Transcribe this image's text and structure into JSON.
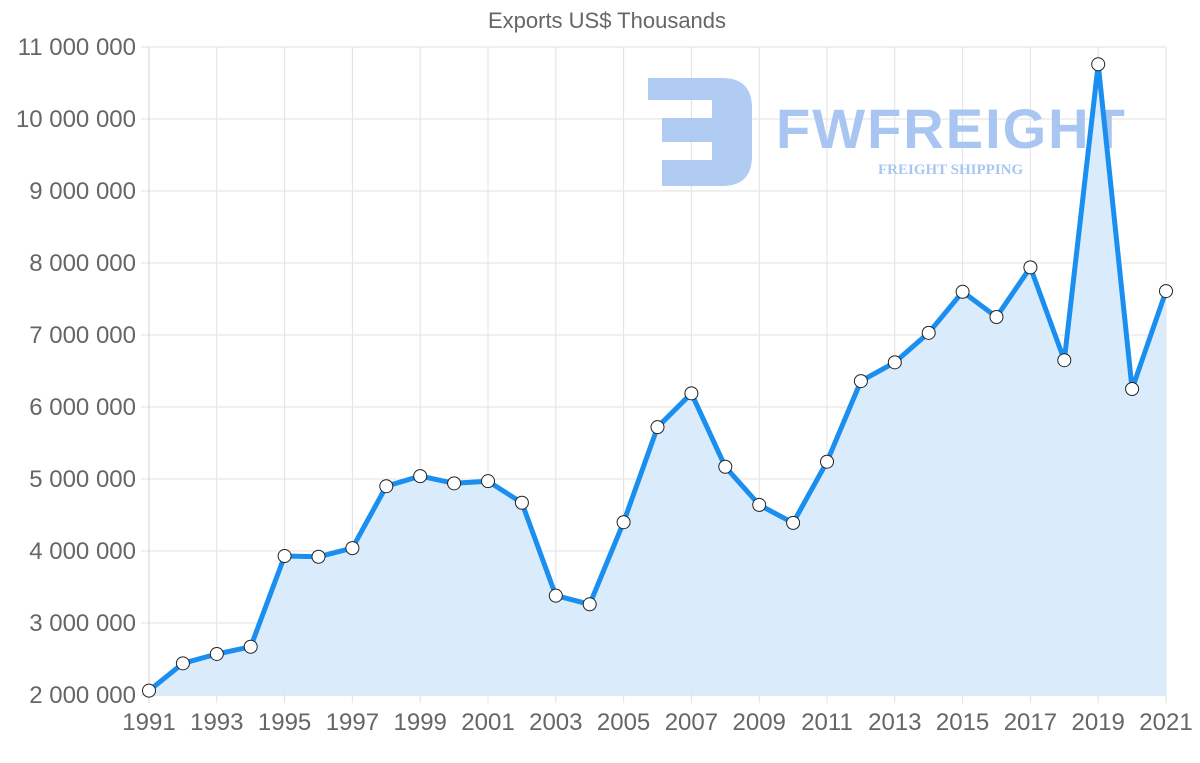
{
  "chart_data": {
    "type": "line",
    "title": "Exports US$ Thousands",
    "xlabel": "",
    "ylabel": "",
    "ylim": [
      2000000,
      11000000
    ],
    "yticks": [
      2000000,
      3000000,
      4000000,
      5000000,
      6000000,
      7000000,
      8000000,
      9000000,
      10000000,
      11000000
    ],
    "ytick_labels": [
      "2 000 000",
      "3 000 000",
      "4 000 000",
      "5 000 000",
      "6 000 000",
      "7 000 000",
      "8 000 000",
      "9 000 000",
      "10 000 000",
      "11 000 000"
    ],
    "xtick_labels": [
      "1991",
      "1993",
      "1995",
      "1997",
      "1999",
      "2001",
      "2003",
      "2005",
      "2007",
      "2009",
      "2011",
      "2013",
      "2015",
      "2017",
      "2019",
      "2021"
    ],
    "grid": true,
    "legend": null,
    "fill": true,
    "x": [
      1991,
      1992,
      1993,
      1994,
      1995,
      1996,
      1997,
      1998,
      1999,
      2000,
      2001,
      2002,
      2003,
      2004,
      2005,
      2006,
      2007,
      2008,
      2009,
      2010,
      2011,
      2012,
      2013,
      2014,
      2015,
      2016,
      2017,
      2018,
      2019,
      2020,
      2021
    ],
    "series": [
      {
        "name": "Exports US$ Thousands",
        "color": "#1a8fef",
        "fill_color": "#d8ebfc",
        "values": [
          2060000,
          2440000,
          2570000,
          2670000,
          3930000,
          3920000,
          4040000,
          4900000,
          5040000,
          4940000,
          4970000,
          4670000,
          3380000,
          3260000,
          4400000,
          5720000,
          6190000,
          5170000,
          4640000,
          4390000,
          5240000,
          6360000,
          6620000,
          7030000,
          7600000,
          7250000,
          7940000,
          6650000,
          10760000,
          6250000,
          7610000
        ]
      }
    ]
  },
  "watermark": {
    "brand": "FWFREIGHT",
    "tagline": "FREIGHT SHIPPING",
    "color": "#a9c6f2"
  }
}
